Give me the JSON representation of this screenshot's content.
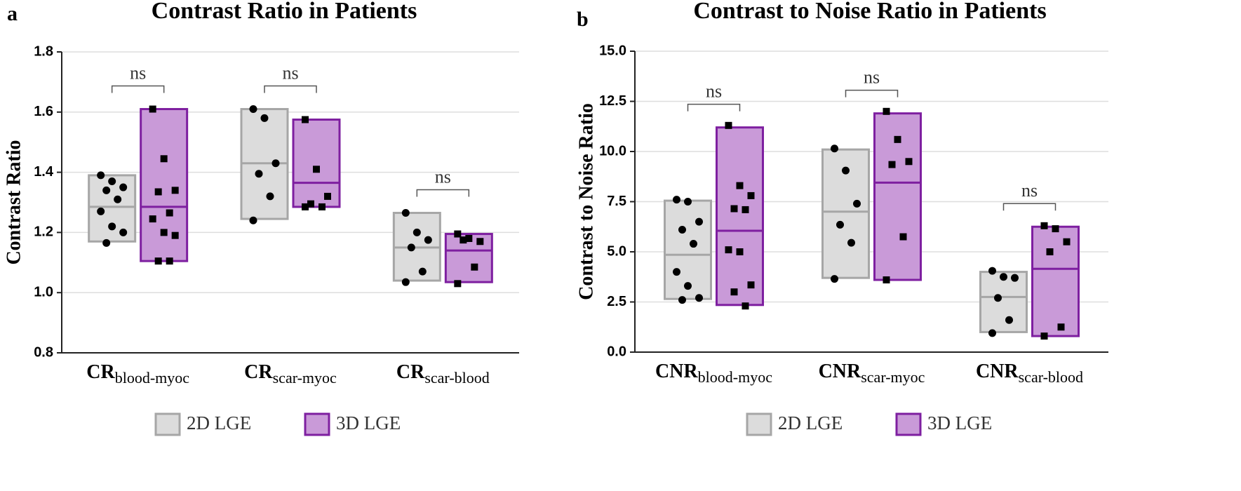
{
  "chart_data": [
    {
      "type": "floating-bar",
      "panel_label": "a",
      "title": "Contrast Ratio in Patients",
      "y_label": "Contrast Ratio",
      "categories": [
        {
          "label": "CR",
          "subscript": "blood-myoc"
        },
        {
          "label": "CR",
          "subscript": "scar-myoc"
        },
        {
          "label": "CR",
          "subscript": "scar-blood"
        }
      ],
      "annotations": [
        "ns",
        "ns",
        "ns"
      ],
      "series": [
        {
          "name": "2D LGE",
          "color": "#a6a6a6",
          "fill": "#dcdcdc",
          "marker": "circle",
          "boxes": [
            {
              "min": 1.17,
              "max": 1.39,
              "median": 1.285,
              "points": [
                1.39,
                1.37,
                1.35,
                1.34,
                1.31,
                1.27,
                1.22,
                1.2,
                1.165
              ]
            },
            {
              "min": 1.245,
              "max": 1.61,
              "median": 1.43,
              "points": [
                1.61,
                1.58,
                1.43,
                1.395,
                1.32,
                1.24
              ]
            },
            {
              "min": 1.04,
              "max": 1.265,
              "median": 1.15,
              "points": [
                1.265,
                1.2,
                1.175,
                1.15,
                1.07,
                1.035
              ]
            }
          ]
        },
        {
          "name": "3D LGE",
          "color": "#7e1fa0",
          "fill": "#c99ad8",
          "marker": "square",
          "boxes": [
            {
              "min": 1.105,
              "max": 1.61,
              "median": 1.285,
              "points": [
                1.61,
                1.445,
                1.34,
                1.335,
                1.265,
                1.245,
                1.2,
                1.19,
                1.105,
                1.105
              ]
            },
            {
              "min": 1.285,
              "max": 1.575,
              "median": 1.365,
              "points": [
                1.575,
                1.41,
                1.32,
                1.295,
                1.285,
                1.285
              ]
            },
            {
              "min": 1.035,
              "max": 1.195,
              "median": 1.14,
              "points": [
                1.195,
                1.18,
                1.17,
                1.175,
                1.085,
                1.03
              ]
            }
          ]
        }
      ],
      "ylim": [
        0.8,
        1.8
      ],
      "yticks": [
        0.8,
        {
          "value": 1,
          "label": "1.0"
        },
        1.2,
        1.4,
        1.6,
        1.8
      ],
      "grid": true
    },
    {
      "type": "floating-bar",
      "panel_label": "b",
      "title": "Contrast to Noise Ratio in Patients",
      "y_label": "Contrast to Noise Ratio",
      "categories": [
        {
          "label": "CNR",
          "subscript": "blood-myoc"
        },
        {
          "label": "CNR",
          "subscript": "scar-myoc"
        },
        {
          "label": "CNR",
          "subscript": "scar-blood"
        }
      ],
      "annotations": [
        "ns",
        "ns",
        "ns"
      ],
      "series": [
        {
          "name": "2D LGE",
          "color": "#a6a6a6",
          "fill": "#dcdcdc",
          "marker": "circle",
          "boxes": [
            {
              "min": 2.65,
              "max": 7.55,
              "median": 4.85,
              "points": [
                7.6,
                7.5,
                6.5,
                6.1,
                5.4,
                4.0,
                3.3,
                2.7,
                2.6
              ]
            },
            {
              "min": 3.7,
              "max": 10.1,
              "median": 7.0,
              "points": [
                10.15,
                9.05,
                7.4,
                6.35,
                5.45,
                3.65
              ]
            },
            {
              "min": 1.0,
              "max": 4.0,
              "median": 2.75,
              "points": [
                4.05,
                3.75,
                3.7,
                2.7,
                1.6,
                0.95
              ]
            }
          ]
        },
        {
          "name": "3D LGE",
          "color": "#7e1fa0",
          "fill": "#c99ad8",
          "marker": "square",
          "boxes": [
            {
              "min": 2.35,
              "max": 11.2,
              "median": 6.05,
              "points": [
                11.3,
                8.3,
                7.8,
                7.15,
                7.1,
                5.1,
                5.0,
                3.35,
                3.0,
                2.3
              ]
            },
            {
              "min": 3.6,
              "max": 11.9,
              "median": 8.45,
              "points": [
                12.0,
                10.6,
                9.5,
                9.35,
                5.75,
                3.6
              ]
            },
            {
              "min": 0.8,
              "max": 6.25,
              "median": 4.15,
              "points": [
                6.3,
                6.15,
                5.5,
                5.0,
                1.25,
                0.8
              ]
            }
          ]
        }
      ],
      "ylim": [
        0,
        15
      ],
      "yticks": [
        {
          "value": 0,
          "label": "0.0"
        },
        2.5,
        {
          "value": 5,
          "label": "5.0"
        },
        7.5,
        {
          "value": 10,
          "label": "10.0"
        },
        12.5,
        {
          "value": 15,
          "label": "15.0"
        }
      ],
      "grid": true
    }
  ]
}
